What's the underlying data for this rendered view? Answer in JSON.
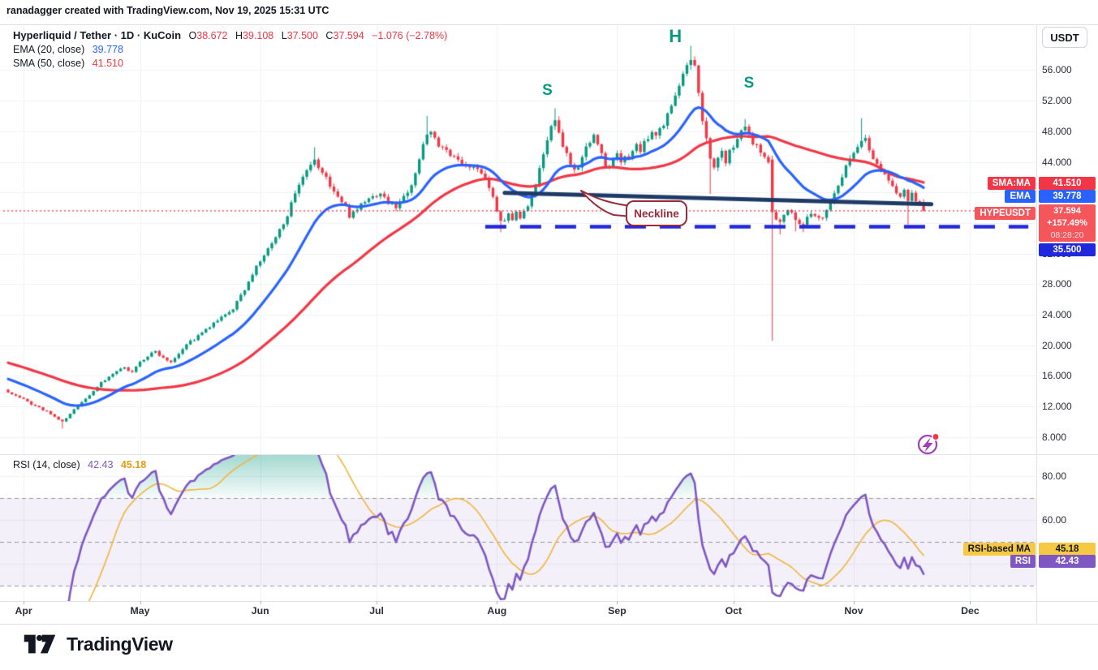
{
  "header": {
    "credit": "ranadagger created with TradingView.com, Nov 19, 2025 15:31 UTC"
  },
  "legend": {
    "symbol": "Hyperliquid / Tether · 1D · KuCoin",
    "o_label": "O",
    "o_value": "38.672",
    "h_label": "H",
    "h_value": "39.108",
    "l_label": "L",
    "l_value": "37.500",
    "c_label": "C",
    "c_value": "37.594",
    "change": "−1.076 (−2.78%)",
    "ema_label": "EMA (20, close)",
    "ema_value": "39.778",
    "sma_label": "SMA (50, close)",
    "sma_value": "41.510"
  },
  "rsi_legend": {
    "label": "RSI (14, close)",
    "rsi_value": "42.43",
    "ma_value": "45.18"
  },
  "price_axis": {
    "currency": "USDT",
    "sma_tag": "SMA:MA",
    "sma_badge": "41.510",
    "ema_tag": "EMA",
    "ema_badge": "39.778",
    "last_tag": "HYPEUSDT",
    "last": {
      "value": "37.594",
      "change_pct": "+157.49%",
      "countdown": "08:28:20"
    },
    "support_badge": "35.500"
  },
  "rsi_axis": {
    "ma_tag": "RSI-based MA",
    "ma_badge": "45.18",
    "rsi_tag": "RSI",
    "rsi_badge": "42.43"
  },
  "footer": {
    "brand": "TradingView"
  },
  "colors": {
    "up": "#089981",
    "down": "#f23645",
    "ema": "#2962ff",
    "sma": "#f23645",
    "rsi": "#7e57c2",
    "rsi_ma": "#f0b43c",
    "support": "#2028dc",
    "neckline": "#1e3a66",
    "price_line": "#f23645",
    "hs_label": "#089981",
    "callout": "#9c2b3a",
    "grid": "#eef1f6",
    "band_fill": "rgba(126,87,194,0.09)",
    "band_line": "#9598a1",
    "overbought_fill": "rgba(8,153,129,0.35)"
  },
  "chart_data": {
    "type": "candlestick",
    "title": "Hyperliquid / Tether",
    "symbol": "HYPEUSDT",
    "exchange": "KuCoin",
    "timeframe": "1D",
    "price_axis_range": [
      5.7,
      62.0
    ],
    "price_ticks": [
      56,
      52,
      48,
      44,
      40,
      36,
      32,
      28,
      24,
      20,
      16,
      12,
      8
    ],
    "rsi_axis_range": [
      23,
      90
    ],
    "rsi_ticks": [
      80,
      60,
      40
    ],
    "rsi_bands": [
      70,
      50,
      30
    ],
    "months": [
      [
        4,
        "Apr"
      ],
      [
        34,
        "May"
      ],
      [
        65,
        "Jun"
      ],
      [
        95,
        "Jul"
      ],
      [
        126,
        "Aug"
      ],
      [
        157,
        "Sep"
      ],
      [
        187,
        "Oct"
      ],
      [
        218,
        "Nov"
      ],
      [
        248,
        "Dec"
      ]
    ],
    "last_candle": {
      "open": 38.672,
      "high": 39.108,
      "low": 37.5,
      "close": 37.594,
      "change": -1.076,
      "change_pct": -2.78
    },
    "indicators": {
      "ema_period": 20,
      "ema_last": 39.778,
      "sma_period": 50,
      "sma_last": 41.51,
      "rsi_period": 14,
      "rsi_last": 42.43,
      "rsi_ma_period": 14,
      "rsi_ma_last": 45.18
    },
    "levels": {
      "support": {
        "price": 35.5,
        "style": "dashed",
        "from_day": 123,
        "to_day": 263
      },
      "price_line": {
        "price": 37.594,
        "style": "dotted"
      },
      "neckline": {
        "from": [
          128,
          39.95
        ],
        "to": [
          238,
          38.45
        ]
      }
    },
    "hs_labels": [
      {
        "text": "S",
        "day": 139,
        "price": 53.3
      },
      {
        "text": "H",
        "day": 172,
        "price": 60.6
      },
      {
        "text": "S",
        "day": 191,
        "price": 54.2
      }
    ],
    "callout": {
      "text": "Neckline",
      "tip_day": 148,
      "tip_price": 39.9
    },
    "price_anchors": [
      [
        0,
        13.8
      ],
      [
        2,
        13.3
      ],
      [
        4,
        12.9
      ],
      [
        6,
        12.3
      ],
      [
        8,
        11.8
      ],
      [
        10,
        11.3
      ],
      [
        12,
        10.6
      ],
      [
        14,
        10.0
      ],
      [
        16,
        11.0
      ],
      [
        18,
        12.1
      ],
      [
        20,
        13.0
      ],
      [
        22,
        14.0
      ],
      [
        24,
        15.2
      ],
      [
        26,
        15.8
      ],
      [
        28,
        16.6
      ],
      [
        30,
        17.0
      ],
      [
        32,
        16.6
      ],
      [
        34,
        17.8
      ],
      [
        36,
        18.6
      ],
      [
        38,
        19.2
      ],
      [
        40,
        18.4
      ],
      [
        42,
        17.9
      ],
      [
        44,
        19.0
      ],
      [
        46,
        20.2
      ],
      [
        48,
        20.8
      ],
      [
        50,
        21.6
      ],
      [
        52,
        22.4
      ],
      [
        54,
        23.2
      ],
      [
        56,
        23.9
      ],
      [
        58,
        24.8
      ],
      [
        60,
        26.4
      ],
      [
        62,
        28.4
      ],
      [
        64,
        30.2
      ],
      [
        66,
        31.8
      ],
      [
        68,
        33.2
      ],
      [
        70,
        35.0
      ],
      [
        72,
        37.2
      ],
      [
        74,
        39.6
      ],
      [
        76,
        41.8
      ],
      [
        78,
        43.4
      ],
      [
        79,
        44.0
      ],
      [
        81,
        42.6
      ],
      [
        83,
        41.0
      ],
      [
        85,
        39.4
      ],
      [
        87,
        38.0
      ],
      [
        88,
        37.0
      ],
      [
        90,
        38.0
      ],
      [
        92,
        38.8
      ],
      [
        94,
        39.4
      ],
      [
        96,
        40.0
      ],
      [
        98,
        38.6
      ],
      [
        100,
        38.2
      ],
      [
        102,
        39.4
      ],
      [
        104,
        41.2
      ],
      [
        106,
        44.3
      ],
      [
        108,
        47.6
      ],
      [
        109,
        48.2
      ],
      [
        111,
        46.2
      ],
      [
        113,
        45.2
      ],
      [
        115,
        44.4
      ],
      [
        117,
        44.0
      ],
      [
        119,
        43.5
      ],
      [
        121,
        42.9
      ],
      [
        123,
        41.9
      ],
      [
        124,
        40.5
      ],
      [
        125,
        39.2
      ],
      [
        126,
        37.8
      ],
      [
        127,
        36.4
      ],
      [
        128,
        36.0
      ],
      [
        129,
        37.0
      ],
      [
        130,
        36.5
      ],
      [
        131,
        37.3
      ],
      [
        132,
        36.9
      ],
      [
        133,
        37.5
      ],
      [
        134,
        38.4
      ],
      [
        135,
        39.6
      ],
      [
        136,
        41.2
      ],
      [
        137,
        43.0
      ],
      [
        138,
        45.0
      ],
      [
        139,
        46.8
      ],
      [
        140,
        48.3
      ],
      [
        141,
        49.2
      ],
      [
        142,
        48.0
      ],
      [
        143,
        46.2
      ],
      [
        144,
        44.8
      ],
      [
        145,
        43.4
      ],
      [
        146,
        42.6
      ],
      [
        147,
        43.6
      ],
      [
        148,
        44.9
      ],
      [
        149,
        45.9
      ],
      [
        150,
        46.8
      ],
      [
        151,
        47.2
      ],
      [
        152,
        46.1
      ],
      [
        153,
        44.9
      ],
      [
        154,
        43.7
      ],
      [
        155,
        43.1
      ],
      [
        156,
        44.1
      ],
      [
        157,
        44.8
      ],
      [
        158,
        44.2
      ],
      [
        159,
        45.1
      ],
      [
        160,
        44.5
      ],
      [
        161,
        45.3
      ],
      [
        162,
        46.1
      ],
      [
        163,
        45.5
      ],
      [
        164,
        46.3
      ],
      [
        165,
        47.1
      ],
      [
        166,
        47.8
      ],
      [
        167,
        47.3
      ],
      [
        168,
        48.2
      ],
      [
        169,
        49.1
      ],
      [
        170,
        50.1
      ],
      [
        171,
        51.3
      ],
      [
        172,
        52.7
      ],
      [
        173,
        54.1
      ],
      [
        174,
        55.3
      ],
      [
        175,
        56.4
      ],
      [
        176,
        57.1
      ],
      [
        177,
        56.2
      ],
      [
        178,
        52.8
      ],
      [
        179,
        49.6
      ],
      [
        180,
        47.2
      ],
      [
        181,
        44.8
      ],
      [
        182,
        43.4
      ],
      [
        183,
        44.4
      ],
      [
        184,
        45.2
      ],
      [
        185,
        44.2
      ],
      [
        186,
        45.4
      ],
      [
        187,
        46.0
      ],
      [
        188,
        46.9
      ],
      [
        189,
        47.7
      ],
      [
        190,
        48.2
      ],
      [
        191,
        47.3
      ],
      [
        192,
        46.4
      ],
      [
        193,
        46.0
      ],
      [
        194,
        45.2
      ],
      [
        195,
        44.8
      ],
      [
        196,
        44.3
      ],
      [
        197,
        37.4
      ],
      [
        198,
        36.6
      ],
      [
        199,
        36.0
      ],
      [
        200,
        36.8
      ],
      [
        201,
        37.6
      ],
      [
        202,
        37.2
      ],
      [
        203,
        36.4
      ],
      [
        204,
        36.0
      ],
      [
        205,
        35.9
      ],
      [
        206,
        36.7
      ],
      [
        207,
        37.3
      ],
      [
        208,
        37.0
      ],
      [
        209,
        36.4
      ],
      [
        210,
        36.9
      ],
      [
        211,
        37.8
      ],
      [
        213,
        40.0
      ],
      [
        215,
        42.3
      ],
      [
        217,
        44.4
      ],
      [
        219,
        45.9
      ],
      [
        220,
        46.6
      ],
      [
        221,
        46.9
      ],
      [
        222,
        45.4
      ],
      [
        223,
        44.6
      ],
      [
        224,
        43.8
      ],
      [
        225,
        43.1
      ],
      [
        226,
        42.4
      ],
      [
        227,
        41.5
      ],
      [
        228,
        40.6
      ],
      [
        229,
        39.8
      ],
      [
        230,
        39.2
      ],
      [
        231,
        40.0
      ],
      [
        232,
        38.9
      ],
      [
        233,
        39.7
      ],
      [
        234,
        39.1
      ],
      [
        235,
        38.672
      ],
      [
        236,
        37.594
      ]
    ],
    "special_candles": {
      "14": {
        "l": 9.1
      },
      "79": {
        "h": 45.9
      },
      "108": {
        "h": 50.0
      },
      "127": {
        "l": 34.8
      },
      "141": {
        "h": 51.0
      },
      "176": {
        "h": 59.2
      },
      "181": {
        "l": 39.8
      },
      "190": {
        "h": 49.6
      },
      "197": {
        "o": 44.3,
        "h": 44.8,
        "l": 20.6
      },
      "199": {
        "l": 34.5
      },
      "203": {
        "l": 34.9
      },
      "205": {
        "l": 34.8
      },
      "220": {
        "h": 49.7
      },
      "232": {
        "l": 35.8
      },
      "235": {
        "c": 38.672
      },
      "236": {
        "o": 38.672,
        "h": 39.108,
        "l": 37.5,
        "c": 37.594
      }
    }
  }
}
